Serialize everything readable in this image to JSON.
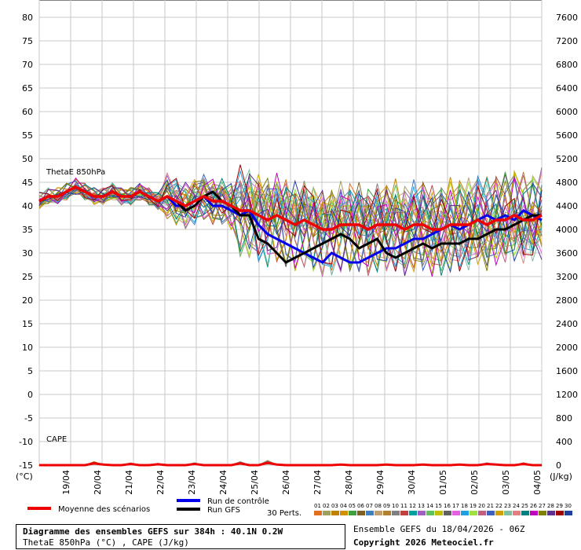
{
  "chart_data": {
    "type": "line",
    "ylabel_left": "(°C)",
    "ylabel_right": "(J/kg)",
    "y_left_range": [
      -15,
      80
    ],
    "y_left_ticks": [
      "80",
      "75",
      "70",
      "65",
      "60",
      "55",
      "50",
      "45",
      "40",
      "35",
      "30",
      "25",
      "20",
      "15",
      "10",
      "5",
      "0",
      "-5",
      "-10",
      "-15"
    ],
    "y_right_ticks": [
      "7600",
      "7200",
      "6800",
      "6400",
      "6000",
      "5600",
      "5200",
      "4800",
      "4400",
      "4000",
      "3600",
      "3200",
      "2800",
      "2400",
      "2000",
      "1600",
      "1200",
      "800",
      "400",
      "0"
    ],
    "x_ticks": [
      "19/04",
      "20/04",
      "21/04",
      "22/04",
      "23/04",
      "24/04",
      "25/04",
      "26/04",
      "27/04",
      "28/04",
      "29/04",
      "30/04",
      "01/05",
      "02/05",
      "03/05",
      "04/05"
    ],
    "grid": true,
    "panel_labels": {
      "thetae": "ThetaE 850hPa",
      "cape": "CAPE"
    },
    "series": [
      {
        "name": "Moyenne des scénarios",
        "color": "#ee0000",
        "values": [
          41,
          42,
          42,
          43,
          44,
          43,
          42,
          42,
          43,
          42,
          42,
          43,
          42,
          41,
          42,
          41,
          40,
          41,
          42,
          41,
          41,
          40,
          39,
          39,
          38,
          37,
          38,
          37,
          36,
          37,
          36,
          35,
          35,
          36,
          36,
          36,
          35,
          36,
          36,
          36,
          35,
          36,
          36,
          35,
          35,
          36,
          36,
          36,
          37,
          36,
          37,
          37,
          38,
          37,
          37,
          38
        ]
      },
      {
        "name": "Run de contrôle",
        "color": "#0000ee",
        "values": [
          41,
          42,
          42,
          43,
          44,
          43,
          42,
          42,
          43,
          42,
          42,
          43,
          42,
          41,
          42,
          40,
          40,
          41,
          42,
          40,
          40,
          39,
          38,
          39,
          36,
          34,
          33,
          32,
          31,
          30,
          29,
          28,
          30,
          29,
          28,
          28,
          29,
          30,
          31,
          31,
          32,
          33,
          33,
          34,
          35,
          36,
          35,
          36,
          37,
          38,
          37,
          38,
          37,
          39,
          38,
          37
        ]
      },
      {
        "name": "Run GFS",
        "color": "#000000",
        "values": [
          41,
          42,
          42,
          43,
          44,
          43,
          42,
          42,
          43,
          42,
          42,
          43,
          42,
          41,
          42,
          41,
          39,
          40,
          42,
          43,
          41,
          40,
          38,
          38,
          33,
          32,
          30,
          28,
          29,
          30,
          31,
          32,
          33,
          34,
          33,
          31,
          32,
          33,
          30,
          29,
          30,
          31,
          32,
          31,
          32,
          32,
          32,
          33,
          33,
          34,
          35,
          35,
          36,
          37,
          38,
          38
        ]
      }
    ],
    "perturbations_count": 30,
    "cape_mean": [
      0,
      0,
      0,
      0,
      0,
      0,
      30,
      10,
      0,
      0,
      20,
      0,
      0,
      15,
      0,
      0,
      0,
      20,
      0,
      0,
      0,
      0,
      30,
      0,
      0,
      40,
      10,
      0,
      0,
      0,
      0,
      0,
      0,
      10,
      0,
      0,
      0,
      0,
      10,
      0,
      0,
      0,
      10,
      0,
      0,
      0,
      10,
      0,
      0,
      20,
      10,
      0,
      0,
      20,
      0,
      0
    ]
  },
  "legend": {
    "mean": "Moyenne des scénarios",
    "control": "Run de contrôle",
    "gfs": "Run GFS",
    "perts": "30 Perts.",
    "pert_numbers": [
      "01",
      "02",
      "03",
      "04",
      "05",
      "06",
      "07",
      "08",
      "09",
      "10",
      "11",
      "12",
      "13",
      "14",
      "15",
      "16",
      "17",
      "18",
      "19",
      "20",
      "21",
      "22",
      "23",
      "24",
      "25",
      "26",
      "27",
      "28",
      "29",
      "30"
    ],
    "pert_colors": [
      "#e07020",
      "#a0a060",
      "#c08000",
      "#d09000",
      "#40a040",
      "#806020",
      "#4080c0",
      "#c0a070",
      "#b08030",
      "#808080",
      "#c04040",
      "#00a0a0",
      "#a060c0",
      "#60c060",
      "#c0c000",
      "#606060",
      "#e060e0",
      "#20a0e0",
      "#a0e040",
      "#c06080",
      "#4060c0",
      "#d0a000",
      "#80c0a0",
      "#e08080",
      "#008080",
      "#c000c0",
      "#808000",
      "#603090",
      "#a00000",
      "#2040a0"
    ]
  },
  "footer": {
    "title": "Diagramme des ensembles GEFS sur 384h : 40.1N 0.2W",
    "subtitle": "ThetaE 850hPa (°C) , CAPE (J/kg)",
    "run": "Ensemble GEFS du 18/04/2026 - 06Z",
    "copyright": "Copyright 2026 Meteociel.fr"
  }
}
